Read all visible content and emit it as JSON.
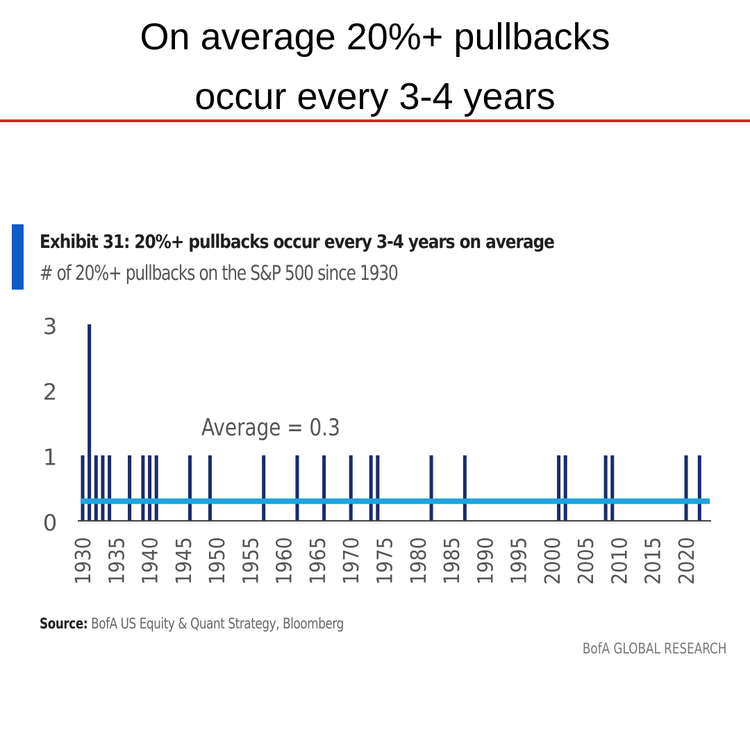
{
  "headline": {
    "line1": "On average 20%+ pullbacks",
    "line2": "occur every 3-4 years"
  },
  "colors": {
    "headline_rule": "#d9262b",
    "accent_bar": "#0d5bc6",
    "bars": "#1a2a6c",
    "average_line": "#1fa3e0",
    "axis": "#444444"
  },
  "exhibit": {
    "title": "Exhibit 31: 20%+ pullbacks occur every 3-4 years on average",
    "subtitle": "# of 20%+ pullbacks on the S&P 500 since 1930"
  },
  "footer": {
    "source_label": "Source:",
    "source_text": "BofA US Equity & Quant Strategy, Bloomberg",
    "brand": "BofA GLOBAL RESEARCH"
  },
  "chart_data": {
    "type": "bar",
    "title": "Exhibit 31: 20%+ pullbacks occur every 3-4 years on average",
    "subtitle": "# of 20%+ pullbacks on the S&P 500 since 1930",
    "xlabel": "",
    "ylabel": "",
    "ylim": [
      0,
      3
    ],
    "yticks": [
      0,
      1,
      2,
      3
    ],
    "xticks": [
      "1930",
      "1935",
      "1940",
      "1945",
      "1950",
      "1955",
      "1960",
      "1965",
      "1970",
      "1975",
      "1980",
      "1985",
      "1990",
      "1995",
      "2000",
      "2005",
      "2010",
      "2015",
      "2020"
    ],
    "x_range": [
      1930,
      2023
    ],
    "grid": false,
    "legend": null,
    "series": [
      {
        "name": "# of 20%+ pullbacks",
        "x": [
          1930,
          1931,
          1932,
          1933,
          1934,
          1937,
          1939,
          1940,
          1941,
          1946,
          1949,
          1957,
          1962,
          1966,
          1970,
          1973,
          1974,
          1982,
          1987,
          2001,
          2002,
          2008,
          2009,
          2020,
          2022
        ],
        "values": [
          1,
          3,
          1,
          1,
          1,
          1,
          1,
          1,
          1,
          1,
          1,
          1,
          1,
          1,
          1,
          1,
          1,
          1,
          1,
          1,
          1,
          1,
          1,
          1,
          1
        ]
      }
    ],
    "reference_lines": [
      {
        "name": "Average",
        "value": 0.3,
        "label": "Average = 0.3"
      }
    ],
    "annotations": [
      "Average = 0.3"
    ]
  }
}
